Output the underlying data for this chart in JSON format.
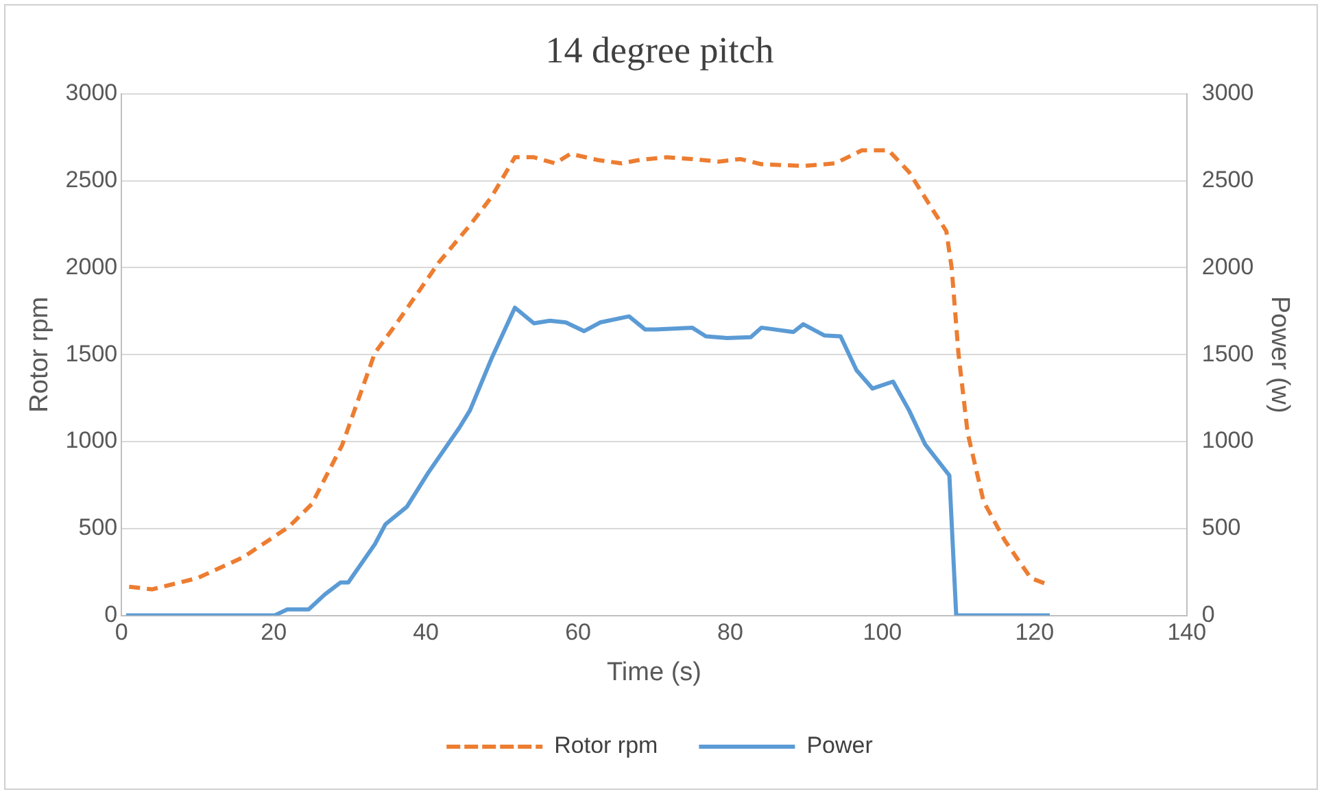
{
  "chart_data": {
    "type": "line",
    "title": "14 degree pitch",
    "xlabel": "Time (s)",
    "ylabel": "Rotor rpm",
    "y2label": "Power (w)",
    "xlim": [
      0,
      140
    ],
    "xticks": [
      0,
      20,
      40,
      60,
      80,
      100,
      120,
      140
    ],
    "ylim": [
      0,
      3000
    ],
    "yticks": [
      0,
      500,
      1000,
      1500,
      2000,
      2500,
      3000
    ],
    "y2lim": [
      0,
      3000
    ],
    "y2ticks": [
      0,
      500,
      1000,
      1500,
      2000,
      2500,
      3000
    ],
    "grid": "y",
    "legend": "bottom",
    "marker": "none",
    "series": [
      {
        "name": "Rotor rpm",
        "color": "#ed7d31",
        "line_style": "dashed",
        "x": [
          1,
          4,
          10,
          16,
          22,
          25,
          29,
          33.3,
          36,
          41.7,
          45.8,
          48.6,
          51.7,
          54.2,
          57,
          59,
          62.5,
          65.7,
          68.1,
          71.6,
          75,
          78.5,
          81.3,
          84.1,
          89.6,
          93.8,
          97.3,
          100.8,
          103.5,
          106.3,
          108.4,
          109.1,
          110,
          111.2,
          113.3,
          116.1,
          119.5,
          121.3
        ],
        "values": [
          165,
          150,
          215,
          335,
          510,
          640,
          980,
          1510,
          1670,
          2030,
          2245,
          2405,
          2635,
          2635,
          2600,
          2655,
          2620,
          2600,
          2620,
          2635,
          2625,
          2610,
          2625,
          2595,
          2585,
          2600,
          2675,
          2675,
          2550,
          2355,
          2210,
          2000,
          1505,
          1050,
          655,
          430,
          215,
          185
        ]
      },
      {
        "name": "Power",
        "color": "#5b9bd5",
        "line_style": "solid",
        "axis": "y2",
        "x": [
          0.6,
          20.1,
          21.8,
          24.6,
          26.7,
          28.8,
          29.8,
          33.3,
          34.7,
          37.5,
          40.3,
          44.4,
          45.8,
          48.6,
          51.7,
          54.2,
          56.3,
          58.4,
          60.8,
          62.9,
          66.7,
          68.8,
          70.2,
          75,
          76.8,
          79.6,
          82.7,
          84.1,
          88.3,
          89.6,
          92.4,
          94.5,
          96.6,
          98.7,
          101.4,
          103.5,
          105.6,
          108.8,
          109.7,
          122
        ],
        "values": [
          0,
          0,
          35,
          35,
          120,
          190,
          190,
          410,
          525,
          625,
          820,
          1080,
          1180,
          1475,
          1770,
          1680,
          1695,
          1685,
          1635,
          1685,
          1720,
          1645,
          1645,
          1655,
          1605,
          1595,
          1600,
          1655,
          1630,
          1675,
          1610,
          1605,
          1410,
          1305,
          1345,
          1180,
          985,
          805,
          0,
          0
        ]
      }
    ]
  }
}
